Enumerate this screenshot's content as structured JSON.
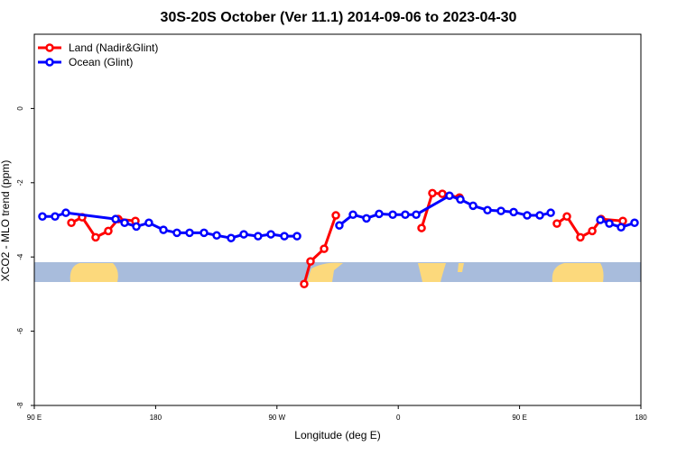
{
  "chart_data": {
    "type": "line",
    "title": "30S-20S October (Ver 11.1)   2014-09-06 to 2023-04-30",
    "x_label": "Longitude (deg E)",
    "y_label": "XCO2 - MLO trend (ppm)",
    "xlim": [
      90,
      540
    ],
    "ylim": [
      -8,
      2
    ],
    "xticks": [
      {
        "value": 90,
        "label": "90 E"
      },
      180,
      {
        "value": 270,
        "label": "90 W"
      },
      {
        "value": 360,
        "label": "0"
      },
      {
        "value": 450,
        "label": "90 E"
      },
      {
        "value": 540,
        "label": "180"
      }
    ],
    "yticks": [
      0,
      -2,
      -4,
      -6,
      -8
    ],
    "legend": "top-left",
    "series": [
      {
        "name": "Land (Nadir&Glint)",
        "color": "#ff0000",
        "x": [
          117.5,
          125.5,
          135.5,
          144.9,
          152.3,
          165,
          null,
          290.2,
          294.9,
          305,
          313.7,
          null,
          377.3,
          385.3,
          392.7,
          405.4,
          null,
          477.7,
          485.1,
          495.1,
          503.9,
          510.5,
          526.6
        ],
        "values": [
          -3.08,
          -2.93,
          -3.47,
          -3.3,
          -2.98,
          -3.03,
          null,
          -4.73,
          -4.12,
          -3.78,
          -2.88,
          null,
          -3.22,
          -2.28,
          -2.3,
          -2.4,
          null,
          -3.1,
          -2.91,
          -3.47,
          -3.3,
          -2.98,
          -3.03
        ]
      },
      {
        "name": "Ocean (Glint)",
        "color": "#0000ff",
        "x": [
          96,
          105.4,
          113.4,
          150.3,
          157,
          165.7,
          175,
          185.8,
          195.8,
          205.2,
          215.9,
          225.3,
          236,
          245.4,
          256,
          265.5,
          275.5,
          284.9,
          null,
          316.3,
          326.4,
          336.4,
          345.8,
          355.9,
          365.2,
          373.3,
          398,
          406.1,
          415.5,
          426.2,
          436.2,
          445.6,
          455.6,
          465,
          473.1,
          null,
          509.9,
          516.6,
          525.3,
          535.3
        ],
        "values": [
          -2.91,
          -2.91,
          -2.81,
          -2.98,
          -3.08,
          -3.18,
          -3.08,
          -3.27,
          -3.35,
          -3.35,
          -3.35,
          -3.42,
          -3.49,
          -3.39,
          -3.44,
          -3.39,
          -3.44,
          -3.44,
          null,
          -3.15,
          -2.86,
          -2.96,
          -2.84,
          -2.86,
          -2.86,
          -2.86,
          -2.35,
          -2.45,
          -2.62,
          -2.74,
          -2.76,
          -2.79,
          -2.88,
          -2.88,
          -2.81,
          null,
          -3.0,
          -3.1,
          -3.2,
          -3.08
        ]
      }
    ]
  }
}
